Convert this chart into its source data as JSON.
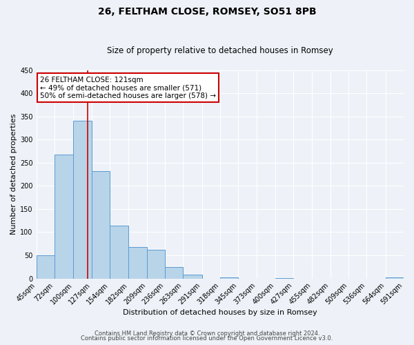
{
  "title": "26, FELTHAM CLOSE, ROMSEY, SO51 8PB",
  "subtitle": "Size of property relative to detached houses in Romsey",
  "xlabel": "Distribution of detached houses by size in Romsey",
  "ylabel": "Number of detached properties",
  "bin_edges": [
    45,
    72,
    100,
    127,
    154,
    182,
    209,
    236,
    263,
    291,
    318,
    345,
    373,
    400,
    427,
    455,
    482,
    509,
    536,
    564,
    591
  ],
  "bar_heights": [
    50,
    268,
    341,
    232,
    114,
    68,
    62,
    25,
    8,
    0,
    2,
    0,
    0,
    1,
    0,
    0,
    0,
    0,
    0,
    2
  ],
  "bar_color": "#b8d4e8",
  "bar_edge_color": "#5b9bd5",
  "vline_x": 121,
  "vline_color": "#cc0000",
  "ylim": [
    0,
    450
  ],
  "yticks": [
    0,
    50,
    100,
    150,
    200,
    250,
    300,
    350,
    400,
    450
  ],
  "x_tick_labels": [
    "45sqm",
    "72sqm",
    "100sqm",
    "127sqm",
    "154sqm",
    "182sqm",
    "209sqm",
    "236sqm",
    "263sqm",
    "291sqm",
    "318sqm",
    "345sqm",
    "373sqm",
    "400sqm",
    "427sqm",
    "455sqm",
    "482sqm",
    "509sqm",
    "536sqm",
    "564sqm",
    "591sqm"
  ],
  "annotation_title": "26 FELTHAM CLOSE: 121sqm",
  "annotation_line1": "← 49% of detached houses are smaller (571)",
  "annotation_line2": "50% of semi-detached houses are larger (578) →",
  "annotation_box_color": "#cc0000",
  "footer_line1": "Contains HM Land Registry data © Crown copyright and database right 2024.",
  "footer_line2": "Contains public sector information licensed under the Open Government Licence v3.0.",
  "bg_color": "#eef2f8",
  "grid_color": "#ffffff",
  "title_fontsize": 10,
  "subtitle_fontsize": 8.5,
  "axis_label_fontsize": 8,
  "tick_fontsize": 7,
  "footer_fontsize": 6,
  "annot_fontsize": 7.5
}
